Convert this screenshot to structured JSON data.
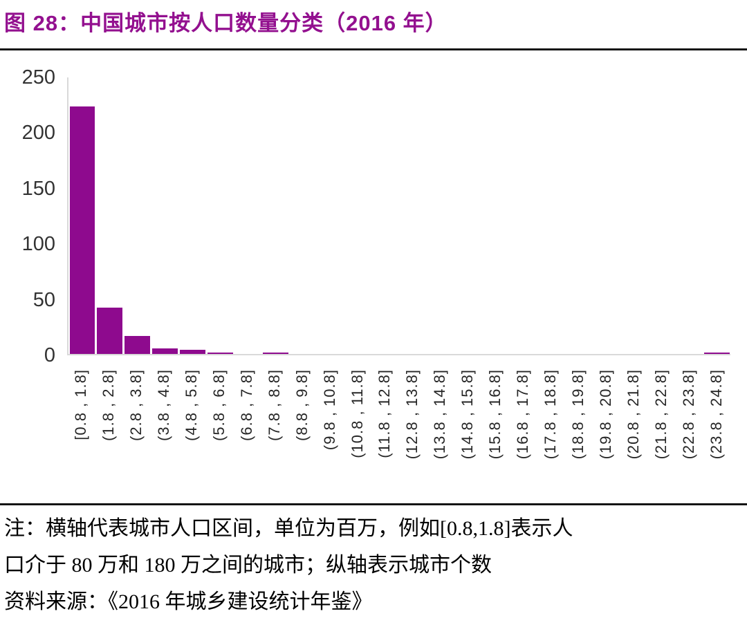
{
  "header": {
    "title": "图 28：中国城市按人口数量分类（2016 年）"
  },
  "chart_data": {
    "type": "bar",
    "title": "中国城市按人口数量分类（2016 年）",
    "categories": [
      "[0.8 , 1.8]",
      "(1.8 , 2.8]",
      "(2.8 , 3.8]",
      "(3.8 , 4.8]",
      "(4.8 , 5.8]",
      "(5.8 , 6.8]",
      "(6.8 , 7.8]",
      "(7.8 , 8.8]",
      "(8.8 , 9.8]",
      "(9.8 , 10.8]",
      "(10.8 , 11.8]",
      "(11.8 , 12.8]",
      "(12.8 , 13.8]",
      "(13.8 , 14.8]",
      "(14.8 , 15.8]",
      "(15.8 , 16.8]",
      "(16.8 , 17.8]",
      "(17.8 , 18.8]",
      "(18.8 , 19.8]",
      "(19.8 , 20.8]",
      "(20.8 , 21.8]",
      "(21.8 , 22.8]",
      "(22.8 , 23.8]",
      "(23.8 , 24.8]"
    ],
    "values": [
      224,
      42,
      16,
      5,
      4,
      1,
      0,
      1,
      0,
      0,
      0,
      0,
      0,
      0,
      0,
      0,
      0,
      0,
      0,
      0,
      0,
      0,
      0,
      1
    ],
    "y_ticks": [
      0,
      50,
      100,
      150,
      200,
      250
    ],
    "ylim": [
      0,
      250
    ],
    "xlabel": "",
    "ylabel": "",
    "grid": false,
    "legend": "none",
    "bar_color": "#8E0A8E",
    "axis_color": "#D9D9D9"
  },
  "footer": {
    "note_line1": "注：横轴代表城市人口区间，单位为百万，例如[0.8,1.8]表示人",
    "note_line2": "口介于 80 万和 180 万之间的城市；纵轴表示城市个数",
    "source": "资料来源：《2016 年城乡建设统计年鉴》"
  },
  "colors": {
    "accent": "#93108F",
    "bar": "#8E0A8E",
    "axis": "#D9D9D9",
    "rule": "#141414",
    "tick_text": "#333333"
  }
}
